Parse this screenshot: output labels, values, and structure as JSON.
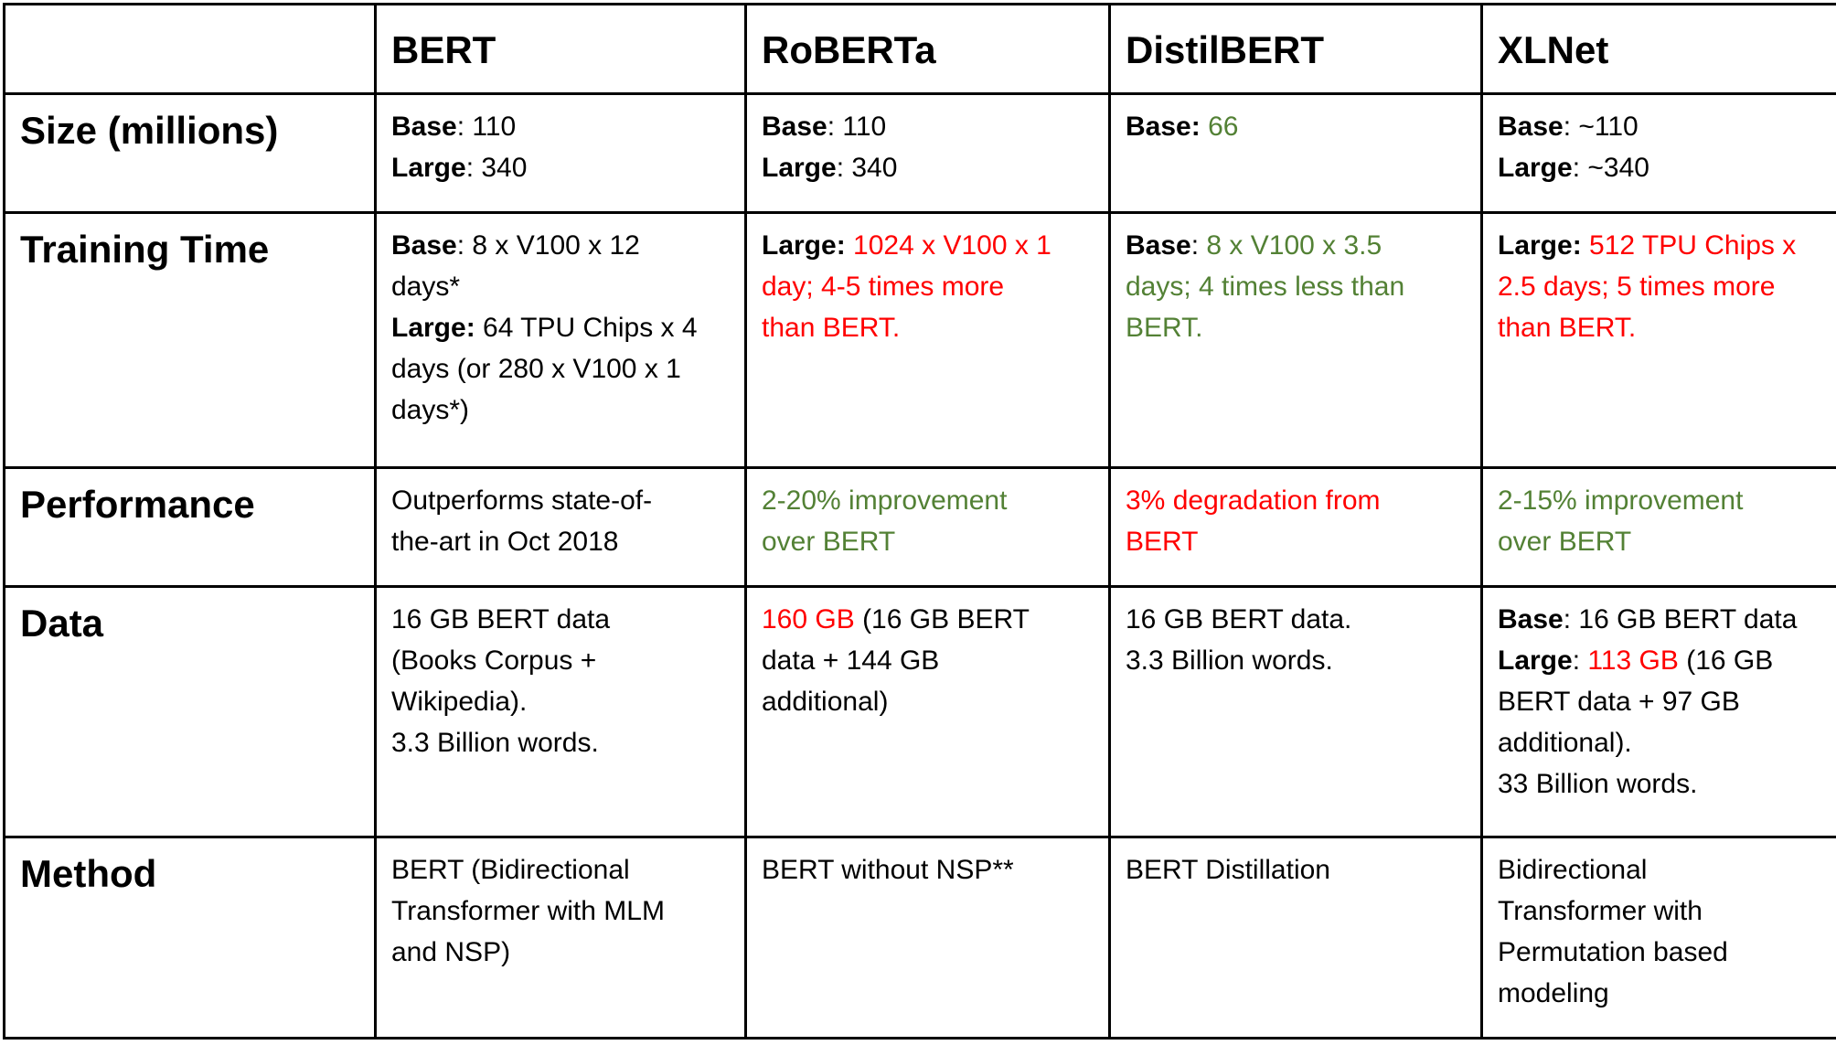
{
  "colors": {
    "red": "#ff0000",
    "green": "#538135",
    "text": "#000000",
    "border": "#000000"
  },
  "header": {
    "cells": [
      "",
      "BERT",
      "RoBERTa",
      "DistilBERT",
      "XLNet"
    ]
  },
  "rows": [
    {
      "label": "Size (millions)",
      "cells": [
        [
          {
            "t": "Base",
            "b": true
          },
          {
            "t": ": 110\n"
          },
          {
            "t": "Large",
            "b": true
          },
          {
            "t": ": 340"
          }
        ],
        [
          {
            "t": "Base",
            "b": true
          },
          {
            "t": ": 110\n"
          },
          {
            "t": "Large",
            "b": true
          },
          {
            "t": ": 340"
          }
        ],
        [
          {
            "t": "Base:",
            "b": true
          },
          {
            "t": " "
          },
          {
            "t": "66",
            "c": "green"
          }
        ],
        [
          {
            "t": "Base",
            "b": true
          },
          {
            "t": ": ~110\n"
          },
          {
            "t": "Large",
            "b": true
          },
          {
            "t": ": ~340"
          }
        ]
      ]
    },
    {
      "label": "Training Time",
      "cells": [
        [
          {
            "t": "Base",
            "b": true
          },
          {
            "t": ": 8 x V100 x 12\ndays*\n"
          },
          {
            "t": "Large:",
            "b": true
          },
          {
            "t": " 64 TPU Chips x 4\ndays (or 280 x V100 x 1\ndays*)"
          }
        ],
        [
          {
            "t": "Large:",
            "b": true
          },
          {
            "t": " "
          },
          {
            "t": "1024 x V100 x 1\nday; 4-5 times more\nthan BERT.",
            "c": "red"
          }
        ],
        [
          {
            "t": "Base",
            "b": true
          },
          {
            "t": ": "
          },
          {
            "t": "8 x V100 x 3.5\ndays; 4 times less than\nBERT.",
            "c": "green"
          }
        ],
        [
          {
            "t": "Large:",
            "b": true
          },
          {
            "t": " "
          },
          {
            "t": "512 TPU Chips x\n2.5 days; 5 times more\nthan BERT.",
            "c": "red"
          }
        ]
      ]
    },
    {
      "label": "Performance",
      "cells": [
        [
          {
            "t": "Outperforms state-of-\nthe-art in Oct 2018"
          }
        ],
        [
          {
            "t": "2-20% improvement\nover BERT",
            "c": "green"
          }
        ],
        [
          {
            "t": "3% degradation from\nBERT",
            "c": "red"
          }
        ],
        [
          {
            "t": "2-15% improvement\nover BERT",
            "c": "green"
          }
        ]
      ]
    },
    {
      "label": "Data",
      "cells": [
        [
          {
            "t": "16 GB BERT data\n(Books Corpus +\nWikipedia).\n3.3 Billion words."
          }
        ],
        [
          {
            "t": "160 GB",
            "c": "red"
          },
          {
            "t": " (16 GB BERT\ndata + 144 GB\nadditional)"
          }
        ],
        [
          {
            "t": "16 GB BERT data.\n3.3 Billion words."
          }
        ],
        [
          {
            "t": "Base",
            "b": true
          },
          {
            "t": ": 16 GB BERT data\n"
          },
          {
            "t": "Large",
            "b": true
          },
          {
            "t": ": "
          },
          {
            "t": "113 GB",
            "c": "red"
          },
          {
            "t": " (16 GB\nBERT data + 97 GB\nadditional).\n33 Billion words."
          }
        ]
      ]
    },
    {
      "label": "Method",
      "cells": [
        [
          {
            "t": "BERT (Bidirectional\nTransformer with MLM\nand NSP)"
          }
        ],
        [
          {
            "t": "BERT without NSP**"
          }
        ],
        [
          {
            "t": "BERT Distillation"
          }
        ],
        [
          {
            "t": "Bidirectional\nTransformer with\nPermutation based\nmodeling"
          }
        ]
      ]
    }
  ]
}
